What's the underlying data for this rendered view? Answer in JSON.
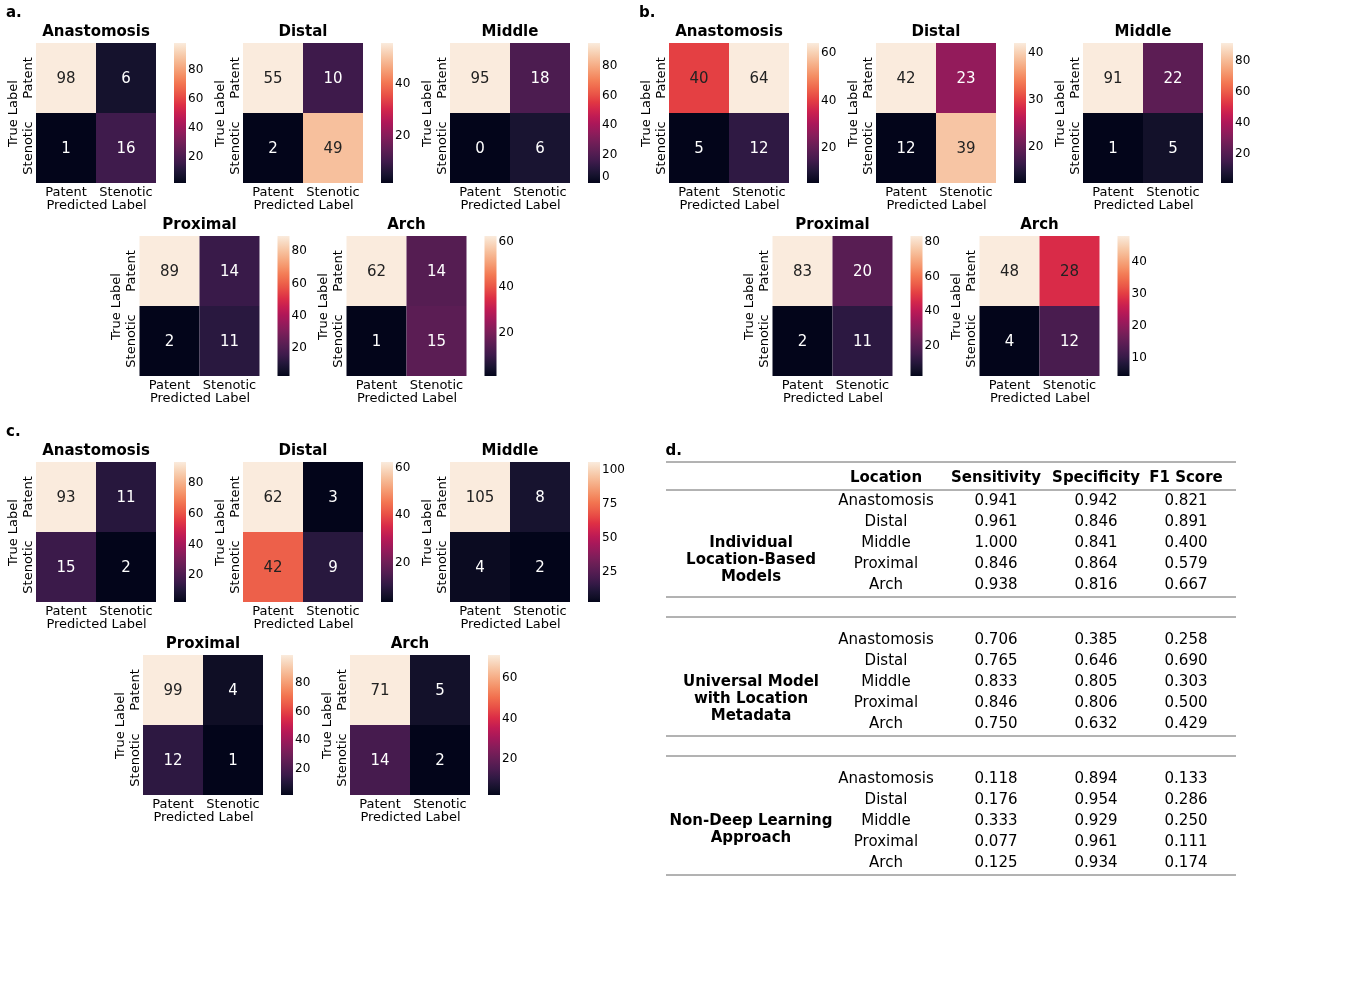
{
  "chart_data": [
    {
      "type": "heatmap",
      "title": "Anastomosis",
      "annotations": [
        "a."
      ],
      "xlabel": "Predicted Label",
      "ylabel": "True Label",
      "categories": [
        "Patent",
        "Stenotic"
      ],
      "y_categories": [
        "Patent",
        "Stenotic"
      ],
      "cells": [
        [
          98,
          6
        ],
        [
          1,
          16
        ]
      ],
      "clim": [
        1,
        98
      ],
      "cticks": [
        20,
        40,
        60,
        80
      ],
      "data_labels": true
    },
    {
      "type": "heatmap",
      "title": "Distal",
      "xlabel": "Predicted Label",
      "ylabel": "True Label",
      "categories": [
        "Patent",
        "Stenotic"
      ],
      "y_categories": [
        "Patent",
        "Stenotic"
      ],
      "cells": [
        [
          55,
          10
        ],
        [
          2,
          49
        ]
      ],
      "clim": [
        2,
        55
      ],
      "cticks": [
        20,
        40
      ],
      "data_labels": true
    },
    {
      "type": "heatmap",
      "title": "Middle",
      "xlabel": "Predicted Label",
      "ylabel": "True Label",
      "categories": [
        "Patent",
        "Stenotic"
      ],
      "y_categories": [
        "Patent",
        "Stenotic"
      ],
      "cells": [
        [
          95,
          18
        ],
        [
          0,
          6
        ]
      ],
      "clim": [
        0,
        95
      ],
      "cticks": [
        0,
        20,
        40,
        60,
        80
      ],
      "data_labels": true
    },
    {
      "type": "heatmap",
      "title": "Proximal",
      "xlabel": "Predicted Label",
      "ylabel": "True Label",
      "categories": [
        "Patent",
        "Stenotic"
      ],
      "y_categories": [
        "Patent",
        "Stenotic"
      ],
      "cells": [
        [
          89,
          14
        ],
        [
          2,
          11
        ]
      ],
      "clim": [
        2,
        89
      ],
      "cticks": [
        20,
        40,
        60,
        80
      ],
      "data_labels": true
    },
    {
      "type": "heatmap",
      "title": "Arch",
      "xlabel": "Predicted Label",
      "ylabel": "True Label",
      "categories": [
        "Patent",
        "Stenotic"
      ],
      "y_categories": [
        "Patent",
        "Stenotic"
      ],
      "cells": [
        [
          62,
          14
        ],
        [
          1,
          15
        ]
      ],
      "clim": [
        1,
        62
      ],
      "cticks": [
        20,
        40,
        60
      ],
      "data_labels": true
    },
    {
      "type": "heatmap",
      "title": "Anastomosis",
      "annotations": [
        "b."
      ],
      "xlabel": "Predicted Label",
      "ylabel": "True Label",
      "categories": [
        "Patent",
        "Stenotic"
      ],
      "y_categories": [
        "Patent",
        "Stenotic"
      ],
      "cells": [
        [
          40,
          64
        ],
        [
          5,
          12
        ]
      ],
      "clim": [
        5,
        64
      ],
      "cticks": [
        20,
        40,
        60
      ],
      "data_labels": true
    },
    {
      "type": "heatmap",
      "title": "Distal",
      "xlabel": "Predicted Label",
      "ylabel": "True Label",
      "categories": [
        "Patent",
        "Stenotic"
      ],
      "y_categories": [
        "Patent",
        "Stenotic"
      ],
      "cells": [
        [
          42,
          23
        ],
        [
          12,
          39
        ]
      ],
      "clim": [
        12,
        42
      ],
      "cticks": [
        20,
        30,
        40
      ],
      "data_labels": true
    },
    {
      "type": "heatmap",
      "title": "Middle",
      "xlabel": "Predicted Label",
      "ylabel": "True Label",
      "categories": [
        "Patent",
        "Stenotic"
      ],
      "y_categories": [
        "Patent",
        "Stenotic"
      ],
      "cells": [
        [
          91,
          22
        ],
        [
          1,
          5
        ]
      ],
      "clim": [
        1,
        91
      ],
      "cticks": [
        20,
        40,
        60,
        80
      ],
      "data_labels": true
    },
    {
      "type": "heatmap",
      "title": "Proximal",
      "xlabel": "Predicted Label",
      "ylabel": "True Label",
      "categories": [
        "Patent",
        "Stenotic"
      ],
      "y_categories": [
        "Patent",
        "Stenotic"
      ],
      "cells": [
        [
          83,
          20
        ],
        [
          2,
          11
        ]
      ],
      "clim": [
        2,
        83
      ],
      "cticks": [
        20,
        40,
        60,
        80
      ],
      "data_labels": true
    },
    {
      "type": "heatmap",
      "title": "Arch",
      "xlabel": "Predicted Label",
      "ylabel": "True Label",
      "categories": [
        "Patent",
        "Stenotic"
      ],
      "y_categories": [
        "Patent",
        "Stenotic"
      ],
      "cells": [
        [
          48,
          28
        ],
        [
          4,
          12
        ]
      ],
      "clim": [
        4,
        48
      ],
      "cticks": [
        10,
        20,
        30,
        40
      ],
      "data_labels": true
    },
    {
      "type": "heatmap",
      "title": "Anastomosis",
      "annotations": [
        "c."
      ],
      "xlabel": "Predicted Label",
      "ylabel": "True Label",
      "categories": [
        "Patent",
        "Stenotic"
      ],
      "y_categories": [
        "Patent",
        "Stenotic"
      ],
      "cells": [
        [
          93,
          11
        ],
        [
          15,
          2
        ]
      ],
      "clim": [
        2,
        93
      ],
      "cticks": [
        20,
        40,
        60,
        80
      ],
      "data_labels": true
    },
    {
      "type": "heatmap",
      "title": "Distal",
      "xlabel": "Predicted Label",
      "ylabel": "True Label",
      "categories": [
        "Patent",
        "Stenotic"
      ],
      "y_categories": [
        "Patent",
        "Stenotic"
      ],
      "cells": [
        [
          62,
          3
        ],
        [
          42,
          9
        ]
      ],
      "clim": [
        3,
        62
      ],
      "cticks": [
        20,
        40,
        60
      ],
      "data_labels": true
    },
    {
      "type": "heatmap",
      "title": "Middle",
      "xlabel": "Predicted Label",
      "ylabel": "True Label",
      "categories": [
        "Patent",
        "Stenotic"
      ],
      "y_categories": [
        "Patent",
        "Stenotic"
      ],
      "cells": [
        [
          105,
          8
        ],
        [
          4,
          2
        ]
      ],
      "clim": [
        2,
        105
      ],
      "cticks": [
        25,
        50,
        75,
        100
      ],
      "data_labels": true
    },
    {
      "type": "heatmap",
      "title": "Proximal",
      "xlabel": "Predicted Label",
      "ylabel": "True Label",
      "categories": [
        "Patent",
        "Stenotic"
      ],
      "y_categories": [
        "Patent",
        "Stenotic"
      ],
      "cells": [
        [
          99,
          4
        ],
        [
          12,
          1
        ]
      ],
      "clim": [
        1,
        99
      ],
      "cticks": [
        20,
        40,
        60,
        80
      ],
      "data_labels": true
    },
    {
      "type": "heatmap",
      "title": "Arch",
      "xlabel": "Predicted Label",
      "ylabel": "True Label",
      "categories": [
        "Patent",
        "Stenotic"
      ],
      "y_categories": [
        "Patent",
        "Stenotic"
      ],
      "cells": [
        [
          71,
          5
        ],
        [
          14,
          2
        ]
      ],
      "clim": [
        2,
        71
      ],
      "cticks": [
        20,
        40,
        60
      ],
      "data_labels": true
    },
    {
      "type": "other",
      "title": "d.",
      "annotations": [
        "Location",
        "Sensitivity",
        "Specificity",
        "F1 Score",
        "Individual Location-Based Models",
        "Anastomosis",
        "0.941",
        "0.942",
        "0.821",
        "Distal",
        "0.961",
        "0.846",
        "0.891",
        "Middle",
        "1.000",
        "0.841",
        "0.400",
        "Proximal",
        "0.846",
        "0.864",
        "0.579",
        "Arch",
        "0.938",
        "0.816",
        "0.667",
        "Universal Model with Location Metadata",
        "Anastomosis",
        "0.706",
        "0.385",
        "0.258",
        "Distal",
        "0.765",
        "0.646",
        "0.690",
        "Middle",
        "0.833",
        "0.805",
        "0.303",
        "Proximal",
        "0.846",
        "0.806",
        "0.500",
        "Arch",
        "0.750",
        "0.632",
        "0.429",
        "Non-Deep Learning Approach",
        "Anastomosis",
        "0.118",
        "0.894",
        "0.133",
        "Distal",
        "0.176",
        "0.954",
        "0.286",
        "Middle",
        "0.333",
        "0.929",
        "0.250",
        "Proximal",
        "0.077",
        "0.961",
        "0.111",
        "Arch",
        "0.125",
        "0.934",
        "0.174"
      ]
    }
  ]
}
